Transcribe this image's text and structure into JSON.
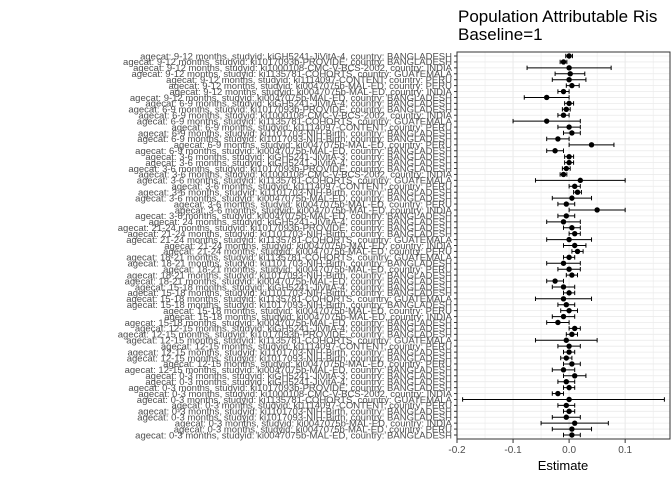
{
  "chart_data": {
    "type": "scatter",
    "title_lines": [
      "Population Attributable Ris",
      "Baseline=1"
    ],
    "xlabel": "Estimate",
    "ylabel": "",
    "xlim": [
      -0.2,
      0.18
    ],
    "xticks": [
      -0.2,
      -0.1,
      0.0,
      0.1
    ],
    "xtick_labels": [
      "-0.2",
      "-0.1",
      "0.0",
      "0.1"
    ],
    "grid": true,
    "colors": {
      "point": "#000000",
      "panel_border": "#333333",
      "grid": "#ebebeb"
    },
    "points": [
      {
        "label": "agecat: 9-12 months, studyid: kiGH5241-JiVitA-4, country: BANGLADESH",
        "est": 0.0,
        "lo": -0.006,
        "hi": 0.006
      },
      {
        "label": "agecat: 9-12 months, studyid: ki1017093b-PROVIDE, country: BANGLADESH",
        "est": -0.01,
        "lo": -0.016,
        "hi": -0.004
      },
      {
        "label": "agecat: 9-12 months, studyid: ki1000108-CMC-V-BCS-2002, country: INDIA",
        "est": 0.0,
        "lo": -0.075,
        "hi": 0.075
      },
      {
        "label": "agecat: 9-12 months, studyid: ki1135781-COHORTS, country: GUATEMALA",
        "est": 0.002,
        "lo": -0.025,
        "hi": 0.028
      },
      {
        "label": "agecat: 9-12 months, studyid: ki1114097-CONTENT, country: PERU",
        "est": 0.0,
        "lo": -0.03,
        "hi": 0.03
      },
      {
        "label": "agecat: 9-12 months, studyid: ki0047075b-MAL-ED, country: PERU",
        "est": 0.005,
        "lo": -0.005,
        "hi": 0.018
      },
      {
        "label": "agecat: 9-12 months, studyid: ki0047075b-MAL-ED, country: INDIA",
        "est": -0.01,
        "lo": -0.02,
        "hi": 0.0
      },
      {
        "label": "agecat: 9-12 months, studyid: ki0047075b-MAL-ED, country: BANGLADESH",
        "est": -0.04,
        "lo": -0.08,
        "hi": 0.0
      },
      {
        "label": "agecat: 6-9 months, studyid: kiGH5241-JiVitA-4, country: BANGLADESH",
        "est": 0.0,
        "lo": -0.008,
        "hi": 0.008
      },
      {
        "label": "agecat: 6-9 months, studyid: ki1017093b-PROVIDE, country: BANGLADESH",
        "est": -0.005,
        "lo": -0.012,
        "hi": 0.002
      },
      {
        "label": "agecat: 6-9 months, studyid: ki1000108-CMC-V-BCS-2002, country: INDIA",
        "est": -0.01,
        "lo": -0.02,
        "hi": 0.0
      },
      {
        "label": "agecat: 6-9 months, studyid: ki1135781-COHORTS, country: GUATEMALA",
        "est": -0.04,
        "lo": -0.1,
        "hi": 0.02
      },
      {
        "label": "agecat: 6-9 months, studyid: ki1114097-CONTENT, country: PERU",
        "est": 0.0,
        "lo": -0.02,
        "hi": 0.02
      },
      {
        "label": "agecat: 6-9 months, studyid: ki1101703-NIH-Birth, country: BANGLADESH",
        "est": 0.005,
        "lo": -0.01,
        "hi": 0.02
      },
      {
        "label": "agecat: 6-9 months, studyid: ki1017093-NIH-Birth, country: BANGLADESH",
        "est": -0.02,
        "lo": -0.04,
        "hi": 0.0
      },
      {
        "label": "agecat: 6-9 months, studyid: ki0047075b-MAL-ED, country: PERU",
        "est": 0.04,
        "lo": 0.0,
        "hi": 0.08
      },
      {
        "label": "agecat: 6-9 months, studyid: ki0047075b-MAL-ED, country: BANGLADESH",
        "est": -0.025,
        "lo": -0.04,
        "hi": -0.01
      },
      {
        "label": "agecat: 3-6 months, studyid: kiGH5241-JiVitA-3, country: BANGLADESH",
        "est": 0.0,
        "lo": -0.008,
        "hi": 0.008
      },
      {
        "label": "agecat: 3-6 months, studyid: kiGH5241-JiVitA-4, country: BANGLADESH",
        "est": 0.0,
        "lo": -0.008,
        "hi": 0.008
      },
      {
        "label": "agecat: 3-6 months, studyid: ki1017093b-PROVIDE, country: BANGLADESH",
        "est": -0.005,
        "lo": -0.012,
        "hi": 0.002
      },
      {
        "label": "agecat: 3-6 months, studyid: ki1000108-CMC-V-BCS-2002, country: INDIA",
        "est": -0.01,
        "lo": -0.016,
        "hi": -0.004
      },
      {
        "label": "agecat: 3-6 months, studyid: ki1135781-COHORTS, country: GUATEMALA",
        "est": 0.02,
        "lo": -0.06,
        "hi": 0.1
      },
      {
        "label": "agecat: 3-6 months, studyid: ki1114097-CONTENT, country: PERU",
        "est": 0.01,
        "lo": 0.0,
        "hi": 0.02
      },
      {
        "label": "agecat: 3-6 months, studyid: ki1101703-NIH-Birth, country: BANGLADESH",
        "est": 0.015,
        "lo": 0.008,
        "hi": 0.022
      },
      {
        "label": "agecat: 3-6 months, studyid: ki0047075b-MAL-ED, country: BANGLADESH",
        "est": 0.005,
        "lo": -0.03,
        "hi": 0.04
      },
      {
        "label": "agecat: 3-6 months, studyid: ki0047075b-MAL-ED, country: PERU",
        "est": -0.005,
        "lo": -0.02,
        "hi": 0.01
      },
      {
        "label": "agecat: 3-6 months, studyid: ki0047075b-MAL-ED, country: INDIA",
        "est": 0.05,
        "lo": 0.0,
        "hi": 0.1
      },
      {
        "label": "agecat: 3-6 months, studyid: ki0047075b-MAL-ED, country: BANGLADESH",
        "est": -0.005,
        "lo": -0.02,
        "hi": 0.01
      },
      {
        "label": "agecat: 24 months, studyid: kiGH5241-JiVitA-4, country: BANGLADESH",
        "est": -0.01,
        "lo": -0.04,
        "hi": 0.02
      },
      {
        "label": "agecat: 21-24 months, studyid: ki1017093b-PROVIDE, country: BANGLADESH",
        "est": 0.005,
        "lo": -0.01,
        "hi": 0.02
      },
      {
        "label": "agecat: 21-24 months, studyid: ki1101703-NIH-Birth, country: BANGLADESH",
        "est": 0.01,
        "lo": 0.0,
        "hi": 0.02
      },
      {
        "label": "agecat: 21-24 months, studyid: ki1135781-COHORTS, country: GUATEMALA",
        "est": 0.0,
        "lo": -0.04,
        "hi": 0.04
      },
      {
        "label": "agecat: 21-24 months, studyid: ki0047075b-MAL-ED, country: INDIA",
        "est": 0.01,
        "lo": -0.01,
        "hi": 0.03
      },
      {
        "label": "agecat: 21-24 months, studyid: ki0047075b-MAL-ED, country: PERU",
        "est": 0.015,
        "lo": 0.005,
        "hi": 0.025
      },
      {
        "label": "agecat: 18-21 months, studyid: ki1135781-COHORTS, country: GUATEMALA",
        "est": 0.0,
        "lo": -0.01,
        "hi": 0.01
      },
      {
        "label": "agecat: 18-21 months, studyid: ki1101703-NIH-Birth, country: BANGLADESH",
        "est": -0.01,
        "lo": -0.04,
        "hi": 0.02
      },
      {
        "label": "agecat: 18-21 months, studyid: ki0047075b-MAL-ED, country: PERU",
        "est": 0.0,
        "lo": -0.02,
        "hi": 0.02
      },
      {
        "label": "agecat: 18-21 months, studyid: ki1017093-NIH-Birth, country: BANGLADESH",
        "est": 0.005,
        "lo": -0.005,
        "hi": 0.015
      },
      {
        "label": "agecat: 18-21 months, studyid: ki0047075b-MAL-ED, country: BANGLADESH",
        "est": -0.025,
        "lo": -0.04,
        "hi": -0.01
      },
      {
        "label": "agecat: 15-18 months, studyid: kiGH5241-JiVitA-4, country: BANGLADESH",
        "est": -0.01,
        "lo": -0.03,
        "hi": 0.01
      },
      {
        "label": "agecat: 15-18 months, studyid: ki1101703-NIH-Birth, country: BANGLADESH",
        "est": 0.0,
        "lo": -0.01,
        "hi": 0.01
      },
      {
        "label": "agecat: 15-18 months, studyid: ki1135781-COHORTS, country: GUATEMALA",
        "est": -0.01,
        "lo": -0.06,
        "hi": 0.04
      },
      {
        "label": "agecat: 15-18 months, studyid: ki1017093-NIH-Birth, country: BANGLADESH",
        "est": -0.005,
        "lo": -0.02,
        "hi": 0.01
      },
      {
        "label": "agecat: 15-18 months, studyid: ki0047075b-MAL-ED, country: PERU",
        "est": 0.0,
        "lo": -0.015,
        "hi": 0.015
      },
      {
        "label": "agecat: 15-18 months, studyid: ki0047075b-MAL-ED, country: INDIA",
        "est": -0.01,
        "lo": -0.03,
        "hi": 0.01
      },
      {
        "label": "agecat: 15-18 months, studyid: ki0047075b-MAL-ED, country: BANGLADESH",
        "est": -0.02,
        "lo": -0.04,
        "hi": 0.0
      },
      {
        "label": "agecat: 12-15 months, studyid: kiGH5241-JiVitA-4, country: BANGLADESH",
        "est": 0.01,
        "lo": 0.0,
        "hi": 0.02
      },
      {
        "label": "agecat: 12-15 months, studyid: ki1017093b-PROVIDE, country: BANGLADESH",
        "est": 0.005,
        "lo": -0.005,
        "hi": 0.015
      },
      {
        "label": "agecat: 12-15 months, studyid: ki1135781-COHORTS, country: GUATEMALA",
        "est": -0.005,
        "lo": -0.06,
        "hi": 0.05
      },
      {
        "label": "agecat: 12-15 months, studyid: ki1114097-CONTENT, country: PERU",
        "est": 0.0,
        "lo": -0.02,
        "hi": 0.02
      },
      {
        "label": "agecat: 12-15 months, studyid: ki1101703-NIH-Birth, country: BANGLADESH",
        "est": 0.0,
        "lo": -0.01,
        "hi": 0.01
      },
      {
        "label": "agecat: 12-15 months, studyid: ki1017093-NIH-Birth, country: BANGLADESH",
        "est": -0.005,
        "lo": -0.015,
        "hi": 0.005
      },
      {
        "label": "agecat: 12-15 months, studyid: ki0047075b-MAL-ED, country: PERU",
        "est": 0.005,
        "lo": -0.01,
        "hi": 0.02
      },
      {
        "label": "agecat: 12-15 months, studyid: ki0047075b-MAL-ED, country: BANGLADESH",
        "est": -0.01,
        "lo": -0.03,
        "hi": 0.01
      },
      {
        "label": "agecat: 0-3 months, studyid: kiGH5241-JiVitA-3, country: BANGLADESH",
        "est": 0.01,
        "lo": -0.01,
        "hi": 0.03
      },
      {
        "label": "agecat: 0-3 months, studyid: kiGH5241-JiVitA-4, country: BANGLADESH",
        "est": -0.005,
        "lo": -0.02,
        "hi": 0.01
      },
      {
        "label": "agecat: 0-3 months, studyid: ki1017093b-PROVIDE, country: BANGLADESH",
        "est": 0.0,
        "lo": -0.01,
        "hi": 0.01
      },
      {
        "label": "agecat: 0-3 months, studyid: ki1000108-CMC-V-BCS-2002, country: INDIA",
        "est": -0.02,
        "lo": -0.03,
        "hi": -0.01
      },
      {
        "label": "agecat: 0-3 months, studyid: ki1135781-COHORTS, country: GUATEMALA",
        "est": 0.0,
        "lo": -0.19,
        "hi": 0.17
      },
      {
        "label": "agecat: 0-3 months, studyid: ki1114097-CONTENT, country: PERU",
        "est": -0.005,
        "lo": -0.02,
        "hi": 0.01
      },
      {
        "label": "agecat: 0-3 months, studyid: ki1101703-NIH-Birth, country: BANGLADESH",
        "est": 0.0,
        "lo": -0.01,
        "hi": 0.01
      },
      {
        "label": "agecat: 0-3 months, studyid: ki1017093-NIH-Birth, country: BANGLADESH",
        "est": -0.005,
        "lo": -0.03,
        "hi": 0.02
      },
      {
        "label": "agecat: 0-3 months, studyid: ki0047075b-MAL-ED, country: INDIA",
        "est": 0.01,
        "lo": -0.05,
        "hi": 0.07
      },
      {
        "label": "agecat: 0-3 months, studyid: ki0047075b-MAL-ED, country: PERU",
        "est": 0.005,
        "lo": -0.03,
        "hi": 0.04
      },
      {
        "label": "agecat: 0-3 months, studyid: ki0047075b-MAL-ED, country: BANGLADESH",
        "est": 0.005,
        "lo": -0.01,
        "hi": 0.02
      }
    ]
  }
}
